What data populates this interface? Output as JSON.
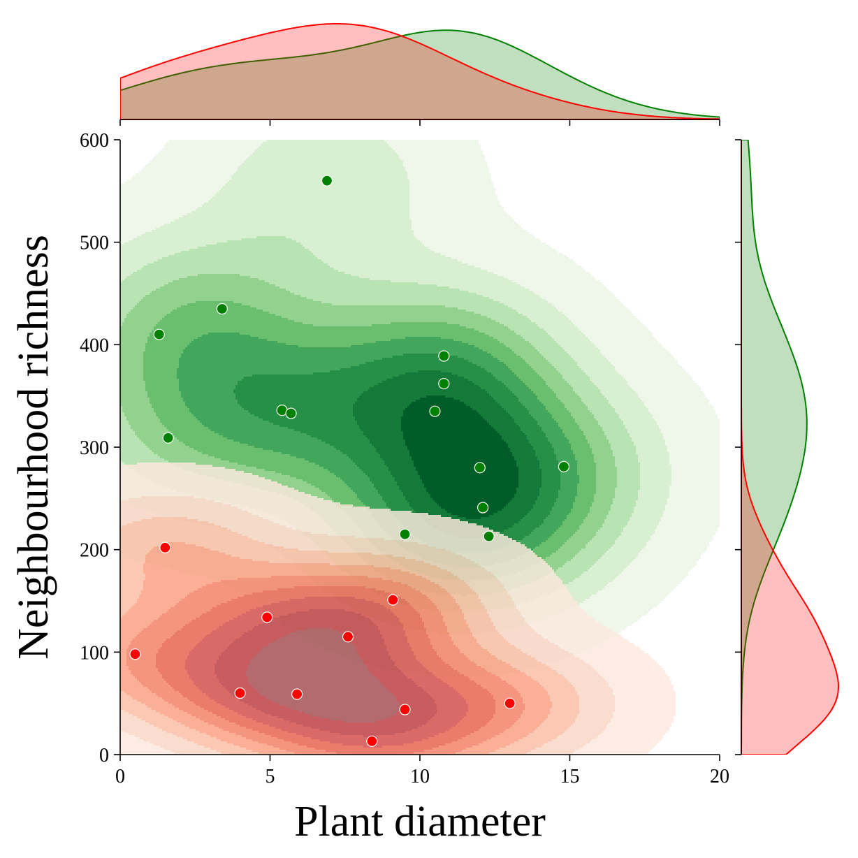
{
  "chart_data": {
    "type": "scatter",
    "subtype": "jointplot with kernel density contours and marginal densities",
    "xlabel": "Plant diameter",
    "ylabel": "Neighbourhood richness",
    "xlim": [
      0,
      20
    ],
    "ylim": [
      0,
      600
    ],
    "x_ticks": [
      0,
      5,
      10,
      15,
      20
    ],
    "y_ticks": [
      0,
      100,
      200,
      300,
      400,
      500,
      600
    ],
    "grid": false,
    "legend": "none",
    "series": [
      {
        "color": "#008000",
        "contour_palette": "greens",
        "points": [
          {
            "x": 6.9,
            "y": 560
          },
          {
            "x": 3.4,
            "y": 435
          },
          {
            "x": 1.3,
            "y": 410
          },
          {
            "x": 10.8,
            "y": 389
          },
          {
            "x": 10.8,
            "y": 362
          },
          {
            "x": 5.4,
            "y": 336
          },
          {
            "x": 5.7,
            "y": 333
          },
          {
            "x": 10.5,
            "y": 335
          },
          {
            "x": 1.6,
            "y": 309
          },
          {
            "x": 12.0,
            "y": 280
          },
          {
            "x": 14.8,
            "y": 281
          },
          {
            "x": 12.1,
            "y": 241
          },
          {
            "x": 9.5,
            "y": 215
          },
          {
            "x": 12.3,
            "y": 213
          }
        ]
      },
      {
        "color": "#ff0000",
        "contour_palette": "reds",
        "points": [
          {
            "x": 1.5,
            "y": 202
          },
          {
            "x": 9.1,
            "y": 151
          },
          {
            "x": 4.9,
            "y": 134
          },
          {
            "x": 7.6,
            "y": 115
          },
          {
            "x": 0.5,
            "y": 98
          },
          {
            "x": 4.0,
            "y": 60
          },
          {
            "x": 5.9,
            "y": 59
          },
          {
            "x": 9.5,
            "y": 44
          },
          {
            "x": 13.0,
            "y": 50
          },
          {
            "x": 8.4,
            "y": 13
          }
        ]
      }
    ]
  }
}
